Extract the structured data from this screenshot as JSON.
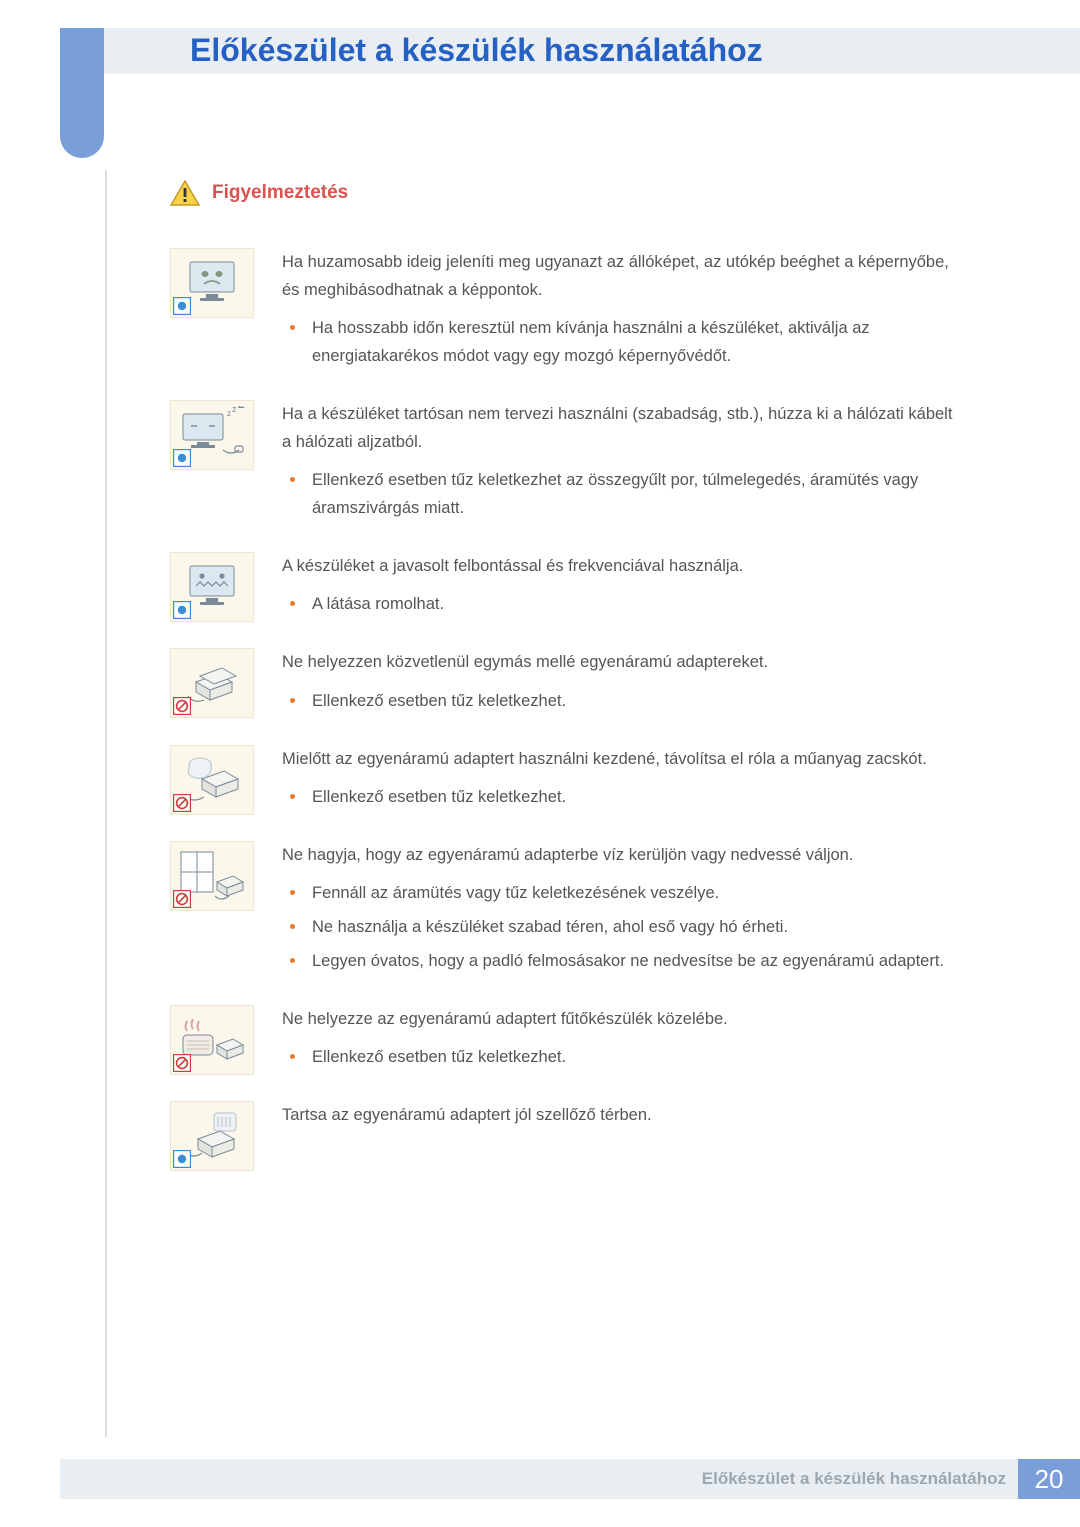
{
  "title": "Előkészület a készülék használatához",
  "section_heading": "Figyelmeztetés",
  "colors": {
    "header_bg": "#e9eef2",
    "tab_bg": "#799ed8",
    "title_color": "#2561c4",
    "heading_color": "#d9534f",
    "bullet_color": "#e57b2f",
    "body_text": "#555555",
    "thumb_bg": "#fbf7eb",
    "thumb_border": "#eee6cf",
    "info_blue": "#3a8bd8",
    "prohibit_red": "#d43a3a"
  },
  "items": [
    {
      "corner": "info",
      "lead": "Ha huzamosabb ideig jeleníti meg ugyanazt az állóképet, az utókép beéghet a képernyőbe, és meghibásodhatnak a képpontok.",
      "bullets": [
        "Ha hosszabb időn keresztül nem kívánja használni a készüléket, aktiválja az energiatakarékos módot vagy egy mozgó képernyővédőt."
      ]
    },
    {
      "corner": "info",
      "lead": "Ha a készüléket tartósan nem tervezi használni (szabadság, stb.), húzza ki a hálózati kábelt a hálózati aljzatból.",
      "bullets": [
        "Ellenkező esetben tűz keletkezhet az összegyűlt por, túlmelegedés, áramütés vagy áramszivárgás miatt."
      ]
    },
    {
      "corner": "info",
      "lead": "A készüléket a javasolt felbontással és frekvenciával használja.",
      "bullets": [
        "A látása romolhat."
      ]
    },
    {
      "corner": "prohibit",
      "lead": "Ne helyezzen közvetlenül egymás mellé egyenáramú adaptereket.",
      "bullets": [
        "Ellenkező esetben tűz keletkezhet."
      ]
    },
    {
      "corner": "prohibit",
      "lead": "Mielőtt az egyenáramú adaptert használni kezdené, távolítsa el róla a műanyag zacskót.",
      "bullets": [
        "Ellenkező esetben tűz keletkezhet."
      ]
    },
    {
      "corner": "prohibit",
      "lead": "Ne hagyja, hogy az egyenáramú adapterbe víz kerüljön vagy nedvessé váljon.",
      "bullets": [
        "Fennáll az áramütés vagy tűz keletkezésének veszélye.",
        "Ne használja a készüléket szabad téren, ahol eső vagy hó érheti.",
        "Legyen óvatos, hogy a padló felmosásakor ne nedvesítse be az egyenáramú adaptert."
      ]
    },
    {
      "corner": "prohibit",
      "lead": "Ne helyezze az egyenáramú adaptert fűtőkészülék közelébe.",
      "bullets": [
        "Ellenkező esetben tűz keletkezhet."
      ]
    },
    {
      "corner": "info",
      "lead": "Tartsa az egyenáramú adaptert jól szellőző térben.",
      "bullets": []
    }
  ],
  "footer": {
    "text": "Előkészület a készülék használatához",
    "page": "20"
  }
}
